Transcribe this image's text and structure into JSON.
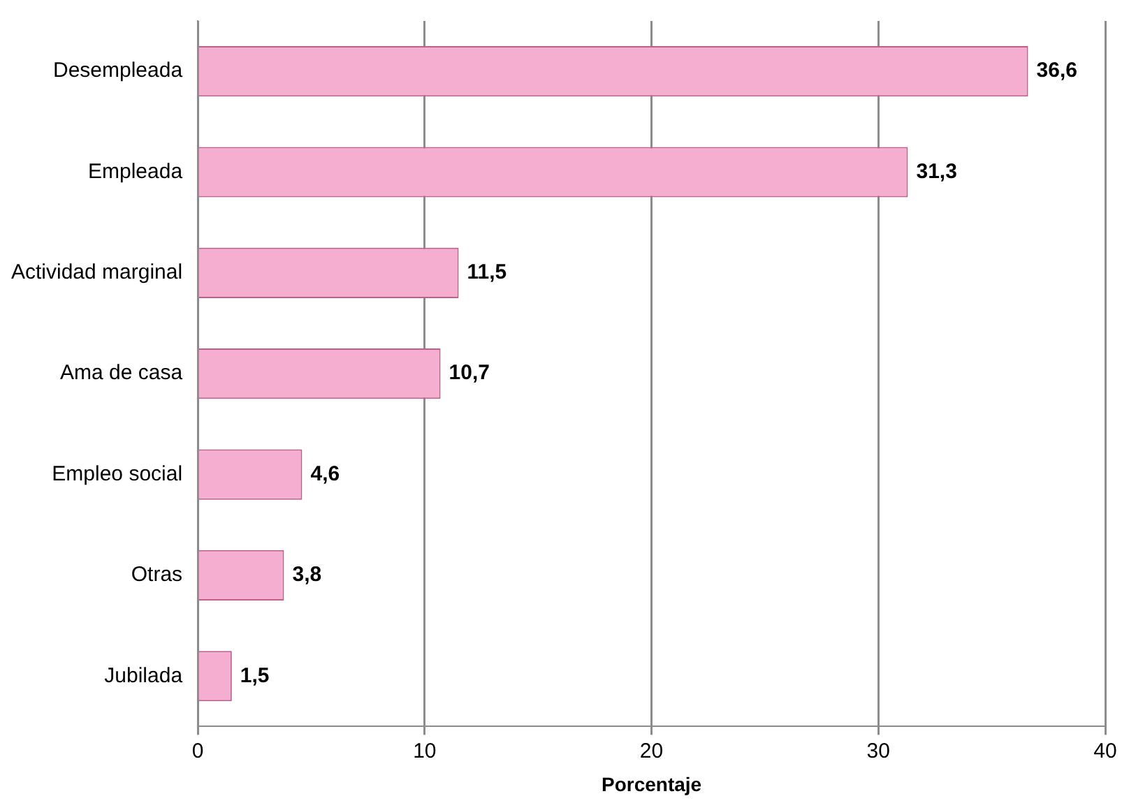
{
  "chart_data": {
    "type": "bar",
    "orientation": "horizontal",
    "categories": [
      "Desempleada",
      "Empleada",
      "Actividad marginal",
      "Ama de casa",
      "Empleo social",
      "Otras",
      "Jubilada"
    ],
    "values": [
      36.6,
      31.3,
      11.5,
      10.7,
      4.6,
      3.8,
      1.5
    ],
    "value_labels": [
      "36,6",
      "31,3",
      "11,5",
      "10,7",
      "4,6",
      "3,8",
      "1,5"
    ],
    "color": "#f5aed0",
    "xlabel": "Porcentaje",
    "xlim": [
      0,
      40
    ],
    "xticks": [
      0,
      10,
      20,
      30,
      40
    ],
    "grid": "x",
    "legend": false
  }
}
